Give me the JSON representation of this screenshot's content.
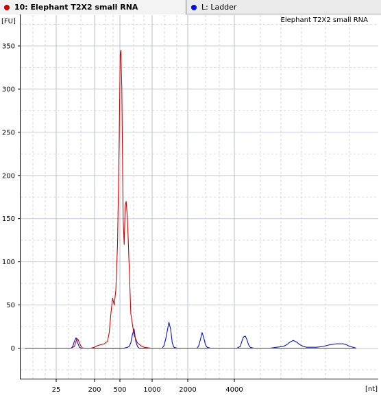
{
  "tabs": [
    {
      "label": "10: Elephant T2X2 small RNA",
      "color": "#d00000",
      "active": true
    },
    {
      "label": "L: Ladder",
      "color": "#0010e0",
      "active": false
    }
  ],
  "chart_data": {
    "type": "line",
    "title": "Elephant T2X2 small RNA",
    "ylabel": "[FU]",
    "xlabel": "[nt]",
    "ylim": [
      -35,
      375
    ],
    "y_ticks": [
      0,
      50,
      100,
      150,
      200,
      250,
      300,
      350
    ],
    "x_ticks": [
      "25",
      "200",
      "500",
      "1000",
      "2000",
      "4000"
    ],
    "grid": true,
    "series": [
      {
        "name": "Elephant T2X2 small RNA",
        "color": "#d40000",
        "points": [
          [
            0.0,
            0
          ],
          [
            0.14,
            0
          ],
          [
            0.15,
            2
          ],
          [
            0.155,
            8
          ],
          [
            0.16,
            11
          ],
          [
            0.165,
            6
          ],
          [
            0.17,
            2
          ],
          [
            0.175,
            0
          ],
          [
            0.2,
            0
          ],
          [
            0.21,
            1
          ],
          [
            0.22,
            3
          ],
          [
            0.23,
            4
          ],
          [
            0.24,
            5
          ],
          [
            0.25,
            8
          ],
          [
            0.255,
            18
          ],
          [
            0.26,
            40
          ],
          [
            0.265,
            58
          ],
          [
            0.27,
            50
          ],
          [
            0.275,
            68
          ],
          [
            0.28,
            120
          ],
          [
            0.285,
            240
          ],
          [
            0.288,
            340
          ],
          [
            0.29,
            345
          ],
          [
            0.293,
            300
          ],
          [
            0.297,
            150
          ],
          [
            0.3,
            120
          ],
          [
            0.303,
            165
          ],
          [
            0.306,
            170
          ],
          [
            0.31,
            150
          ],
          [
            0.315,
            95
          ],
          [
            0.32,
            40
          ],
          [
            0.33,
            15
          ],
          [
            0.34,
            6
          ],
          [
            0.35,
            3
          ],
          [
            0.36,
            1
          ],
          [
            0.38,
            0
          ],
          [
            0.4,
            0
          ],
          [
            0.45,
            0
          ],
          [
            0.5,
            0
          ],
          [
            0.55,
            0
          ],
          [
            0.6,
            0
          ],
          [
            0.65,
            0
          ],
          [
            0.7,
            0
          ],
          [
            0.75,
            0
          ],
          [
            0.8,
            0
          ],
          [
            0.85,
            0
          ],
          [
            0.9,
            0
          ],
          [
            0.95,
            0
          ],
          [
            1.0,
            0
          ]
        ]
      },
      {
        "name": "Ladder",
        "color": "#0010d8",
        "points": [
          [
            0.0,
            0
          ],
          [
            0.14,
            0
          ],
          [
            0.145,
            2
          ],
          [
            0.15,
            8
          ],
          [
            0.155,
            12
          ],
          [
            0.16,
            6
          ],
          [
            0.165,
            1
          ],
          [
            0.17,
            0
          ],
          [
            0.3,
            0
          ],
          [
            0.31,
            1
          ],
          [
            0.315,
            2
          ],
          [
            0.32,
            6
          ],
          [
            0.325,
            16
          ],
          [
            0.33,
            22
          ],
          [
            0.335,
            8
          ],
          [
            0.34,
            2
          ],
          [
            0.345,
            0
          ],
          [
            0.35,
            0
          ],
          [
            0.4,
            0
          ],
          [
            0.415,
            0
          ],
          [
            0.42,
            3
          ],
          [
            0.425,
            10
          ],
          [
            0.43,
            20
          ],
          [
            0.435,
            30
          ],
          [
            0.44,
            22
          ],
          [
            0.445,
            6
          ],
          [
            0.45,
            1
          ],
          [
            0.46,
            0
          ],
          [
            0.5,
            0
          ],
          [
            0.52,
            0
          ],
          [
            0.525,
            3
          ],
          [
            0.53,
            10
          ],
          [
            0.535,
            18
          ],
          [
            0.54,
            12
          ],
          [
            0.545,
            4
          ],
          [
            0.55,
            1
          ],
          [
            0.56,
            0
          ],
          [
            0.6,
            0
          ],
          [
            0.64,
            0
          ],
          [
            0.65,
            2
          ],
          [
            0.655,
            8
          ],
          [
            0.66,
            13
          ],
          [
            0.665,
            14
          ],
          [
            0.67,
            10
          ],
          [
            0.675,
            4
          ],
          [
            0.68,
            1
          ],
          [
            0.69,
            0
          ],
          [
            0.74,
            0
          ],
          [
            0.76,
            1
          ],
          [
            0.78,
            2
          ],
          [
            0.79,
            4
          ],
          [
            0.8,
            7
          ],
          [
            0.81,
            9
          ],
          [
            0.82,
            7
          ],
          [
            0.83,
            4
          ],
          [
            0.84,
            2
          ],
          [
            0.85,
            1
          ],
          [
            0.86,
            1
          ],
          [
            0.88,
            1
          ],
          [
            0.9,
            2
          ],
          [
            0.92,
            4
          ],
          [
            0.94,
            5
          ],
          [
            0.96,
            5
          ],
          [
            0.97,
            4
          ],
          [
            0.98,
            2
          ],
          [
            0.99,
            1
          ],
          [
            1.0,
            0
          ]
        ]
      }
    ]
  }
}
